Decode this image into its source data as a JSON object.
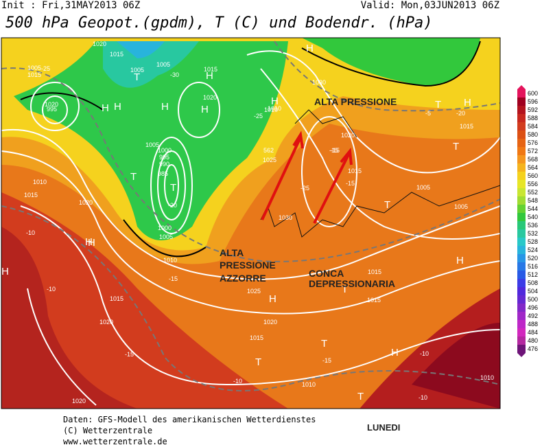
{
  "header": {
    "init": "Init : Fri,31MAY2013 06Z",
    "valid": "Valid: Mon,03JUN2013 06Z",
    "title": "500 hPa Geopot.(gpdm), T (C) und Bodendr. (hPa)"
  },
  "annotations": [
    "ALTA PRESSIONE",
    "ALTA",
    "PRESSIONE",
    "AZZORRE",
    "CONCA",
    "DEPRESSIONARIA",
    "LUNEDI"
  ],
  "map": {
    "labels": [
      "1020",
      "1015",
      "1005",
      "1015",
      "995",
      "H",
      "T",
      "1005",
      "1005",
      "H",
      "1015",
      "1020",
      "H",
      "H",
      "1020",
      "-25",
      "-30",
      "H",
      "1005",
      "1000",
      "995",
      "990",
      "985",
      "T",
      "-20",
      "1000",
      "1005",
      "1010",
      "1010",
      "1015",
      "1020",
      "T",
      "H",
      "1030",
      "1010",
      "-25",
      "562",
      "1025",
      "1020",
      "-15",
      "1015",
      "-25",
      "1005",
      "H",
      "T",
      "H",
      "1030",
      "1010",
      "H",
      "T",
      "1015",
      "1025",
      "H",
      "-15",
      "-10",
      "1015",
      "1020",
      "1015",
      "-15",
      "T",
      "T",
      "-10",
      "H",
      "T",
      "1015",
      "1010",
      "1010",
      "-10",
      "-15",
      "1020",
      "1020",
      "H",
      "T",
      "-15",
      "-10",
      "H",
      "-5",
      "-20",
      "1015",
      "-10",
      "1005",
      "-15",
      "H",
      "T"
    ]
  },
  "colorbar": {
    "ticks": [
      600,
      596,
      592,
      588,
      584,
      580,
      576,
      572,
      568,
      564,
      560,
      556,
      552,
      548,
      544,
      540,
      536,
      532,
      528,
      524,
      520,
      516,
      512,
      508,
      504,
      500,
      496,
      492,
      488,
      484,
      480,
      476
    ],
    "colors": [
      "#e4145c",
      "#a00020",
      "#b4141e",
      "#c8281e",
      "#d23c1e",
      "#dc5014",
      "#e66414",
      "#f07814",
      "#f5961e",
      "#f5b41e",
      "#f5d21e",
      "#e6e628",
      "#c8e632",
      "#a0dc32",
      "#64d232",
      "#32c83c",
      "#28c878",
      "#28c8a0",
      "#28c8c8",
      "#28b4dc",
      "#2896e6",
      "#2878e6",
      "#285ae6",
      "#3c3ce6",
      "#5028dc",
      "#6428d2",
      "#8228c8",
      "#a028c8",
      "#be28c8",
      "#d228be",
      "#b428a0",
      "#6e1478"
    ]
  },
  "footer": [
    "Daten: GFS-Modell des amerikanischen Wetterdienstes",
    "(C) Wetterzentrale",
    "www.wetterzentrale.de"
  ]
}
